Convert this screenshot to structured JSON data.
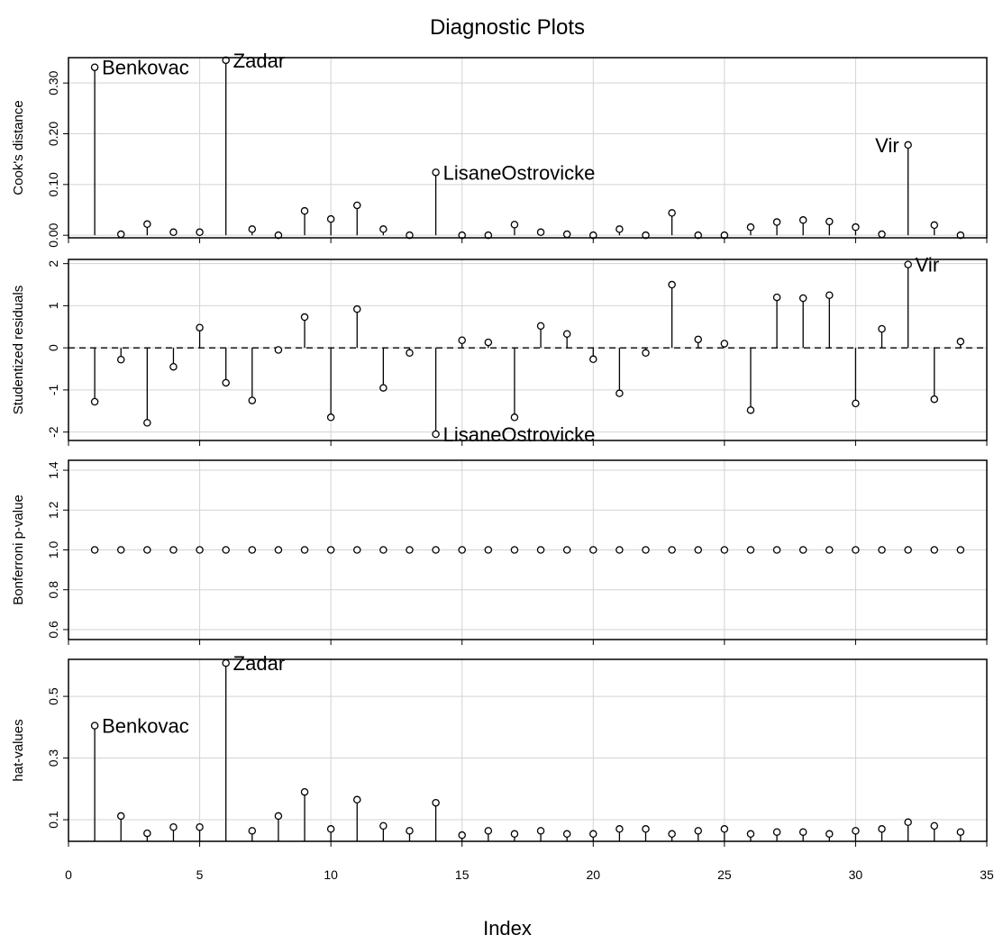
{
  "title": "Diagnostic Plots",
  "chart_data": {
    "type": "scatter",
    "title": "Diagnostic Plots",
    "xlabel": "Index",
    "xlim": [
      0,
      35
    ],
    "x_ticks": [
      0,
      5,
      10,
      15,
      20,
      25,
      30,
      35
    ],
    "x": [
      1,
      2,
      3,
      4,
      5,
      6,
      7,
      8,
      9,
      10,
      11,
      12,
      13,
      14,
      15,
      16,
      17,
      18,
      19,
      20,
      21,
      22,
      23,
      24,
      25,
      26,
      27,
      28,
      29,
      30,
      31,
      32,
      33,
      34
    ],
    "panels": [
      {
        "ylabel": "Cook's distance",
        "ylim": [
          -0.005,
          0.35
        ],
        "y_ticks": [
          0.0,
          0.1,
          0.2,
          0.3
        ],
        "y_tick_labels": [
          "0.00",
          "0.10",
          "0.20",
          "0.30"
        ],
        "style": "stems-from-zero",
        "values": [
          0.331,
          0.002,
          0.022,
          0.006,
          0.006,
          0.345,
          0.012,
          0.0,
          0.048,
          0.032,
          0.059,
          0.012,
          0.0,
          0.124,
          0.0,
          0.0,
          0.021,
          0.006,
          0.002,
          0.0,
          0.012,
          0.0,
          0.044,
          0.0,
          0.0,
          0.016,
          0.026,
          0.03,
          0.027,
          0.016,
          0.002,
          0.178,
          0.02,
          0.0
        ],
        "annotations": [
          {
            "index": 1,
            "label": "Benkovac",
            "side": "right"
          },
          {
            "index": 6,
            "label": "Zadar",
            "side": "right"
          },
          {
            "index": 14,
            "label": "LisaneOstrovicke",
            "side": "right"
          },
          {
            "index": 32,
            "label": "Vir",
            "side": "left"
          }
        ]
      },
      {
        "ylabel": "Studentized residuals",
        "ylim": [
          -2.2,
          2.1
        ],
        "y_ticks": [
          -2,
          -1,
          0,
          1,
          2
        ],
        "y_tick_labels": [
          "-2",
          "-1",
          "0",
          "1",
          "2"
        ],
        "style": "stems-from-zero",
        "reference_line": 0,
        "values": [
          -1.28,
          -0.28,
          -1.78,
          -0.45,
          0.48,
          -0.83,
          -1.25,
          -0.05,
          0.73,
          -1.65,
          0.92,
          -0.95,
          -0.12,
          -2.05,
          0.18,
          0.13,
          -1.65,
          0.52,
          0.33,
          -0.27,
          -1.08,
          -0.12,
          1.5,
          0.2,
          0.1,
          -1.48,
          1.2,
          1.18,
          1.25,
          -1.32,
          0.45,
          1.98,
          -1.22,
          0.15
        ],
        "annotations": [
          {
            "index": 14,
            "label": "LisaneOstrovicke",
            "side": "right"
          },
          {
            "index": 32,
            "label": "Vir",
            "side": "right"
          }
        ]
      },
      {
        "ylabel": "Bonferroni p-value",
        "ylim": [
          0.55,
          1.45
        ],
        "y_ticks": [
          0.6,
          0.8,
          1.0,
          1.2,
          1.4
        ],
        "y_tick_labels": [
          "0.6",
          "0.8",
          "1.0",
          "1.2",
          "1.4"
        ],
        "style": "points",
        "values": [
          1,
          1,
          1,
          1,
          1,
          1,
          1,
          1,
          1,
          1,
          1,
          1,
          1,
          1,
          1,
          1,
          1,
          1,
          1,
          1,
          1,
          1,
          1,
          1,
          1,
          1,
          1,
          1,
          1,
          1,
          1,
          1,
          1,
          1
        ],
        "annotations": []
      },
      {
        "ylabel": "hat-values",
        "ylim": [
          0.03,
          0.62
        ],
        "y_ticks": [
          0.1,
          0.3,
          0.5
        ],
        "y_tick_labels": [
          "0.1",
          "0.3",
          "0.5"
        ],
        "style": "stems-from-bottom",
        "values": [
          0.405,
          0.112,
          0.056,
          0.076,
          0.076,
          0.608,
          0.064,
          0.112,
          0.19,
          0.07,
          0.165,
          0.08,
          0.064,
          0.155,
          0.05,
          0.064,
          0.054,
          0.064,
          0.054,
          0.054,
          0.07,
          0.07,
          0.054,
          0.064,
          0.07,
          0.054,
          0.06,
          0.06,
          0.054,
          0.064,
          0.07,
          0.092,
          0.08,
          0.06
        ],
        "annotations": [
          {
            "index": 1,
            "label": "Benkovac",
            "side": "right"
          },
          {
            "index": 6,
            "label": "Zadar",
            "side": "right"
          }
        ]
      }
    ]
  }
}
